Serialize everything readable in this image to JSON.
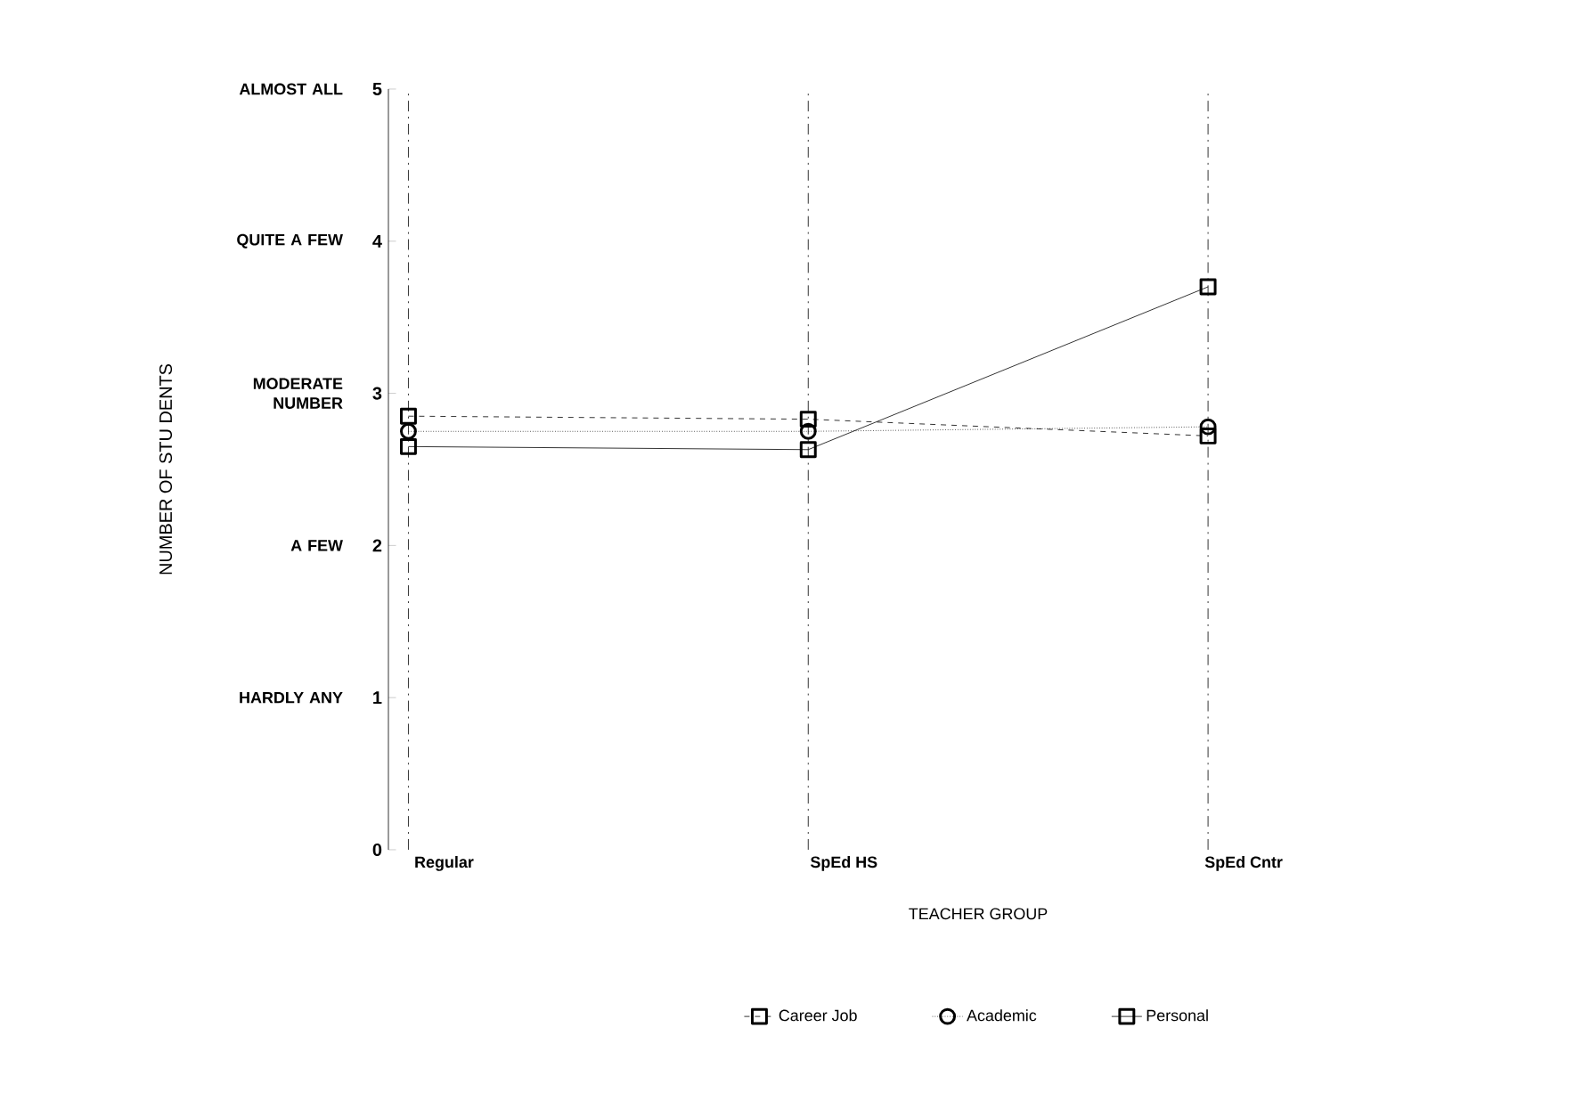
{
  "chart_data": {
    "type": "line",
    "xlabel": "TEACHER GROUP",
    "ylabel": "NUMBER OF STU DENTS",
    "categories": [
      "Regular",
      "SpEd HS",
      "SpEd Cntr"
    ],
    "series": [
      {
        "name": "Career Job",
        "color": "#000000",
        "values": [
          2.85,
          2.83,
          2.72
        ],
        "marker": "square",
        "line_style": "dashed"
      },
      {
        "name": "Academic",
        "color": "#000000",
        "values": [
          2.75,
          2.75,
          2.78
        ],
        "marker": "circle",
        "line_style": "dotted"
      },
      {
        "name": "Personal",
        "color": "#000000",
        "values": [
          2.65,
          2.63,
          3.7
        ],
        "marker": "square",
        "line_style": "solid"
      }
    ],
    "ylim": [
      0,
      5
    ],
    "yticks": [
      0,
      1,
      2,
      3,
      4,
      5
    ],
    "annotations": [
      "HARDLY ANY",
      "A FEW",
      "MODERATE NUMBER",
      "QUITE A FEW",
      "ALMOST ALL"
    ],
    "grid": "x",
    "legend": "bottom"
  }
}
